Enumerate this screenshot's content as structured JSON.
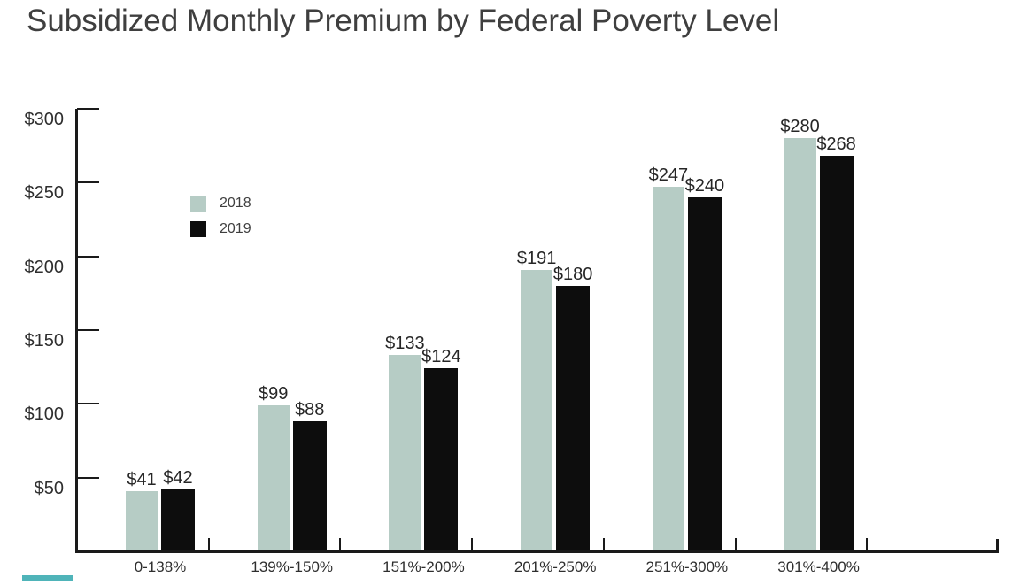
{
  "chart_data": {
    "type": "bar",
    "title": "Subsidized Monthly Premium by Federal Poverty Level",
    "categories": [
      "0-138%",
      "139%-150%",
      "151%-200%",
      "201%-250%",
      "251%-300%",
      "301%-400%"
    ],
    "series": [
      {
        "name": "2018",
        "color": "#b6ccc5",
        "values": [
          41,
          99,
          133,
          191,
          247,
          280
        ]
      },
      {
        "name": "2019",
        "color": "#0d0d0d",
        "values": [
          42,
          88,
          124,
          180,
          240,
          268
        ]
      }
    ],
    "value_label_prefix": "$",
    "y_axis": {
      "min": 0,
      "max": 300,
      "tick_values": [
        50,
        100,
        150,
        200,
        250,
        300
      ],
      "tick_labels": [
        "$50",
        "$100",
        "$150",
        "$200",
        "$250",
        "$300"
      ]
    },
    "x_axis": {
      "empty_trailing_slots": 1
    },
    "legend": {
      "entries": [
        "2018",
        "2019"
      ],
      "position": "inside-upper-left"
    },
    "grid": false
  },
  "colors": {
    "background": "#ffffff",
    "axis": "#1a1a1a",
    "title_text": "#3f3f3f",
    "axis_label_text": "#2e2e2e",
    "value_label_text": "#262626",
    "legend_text": "#3f3f3f",
    "teal_accent": "#4fb4b9"
  }
}
